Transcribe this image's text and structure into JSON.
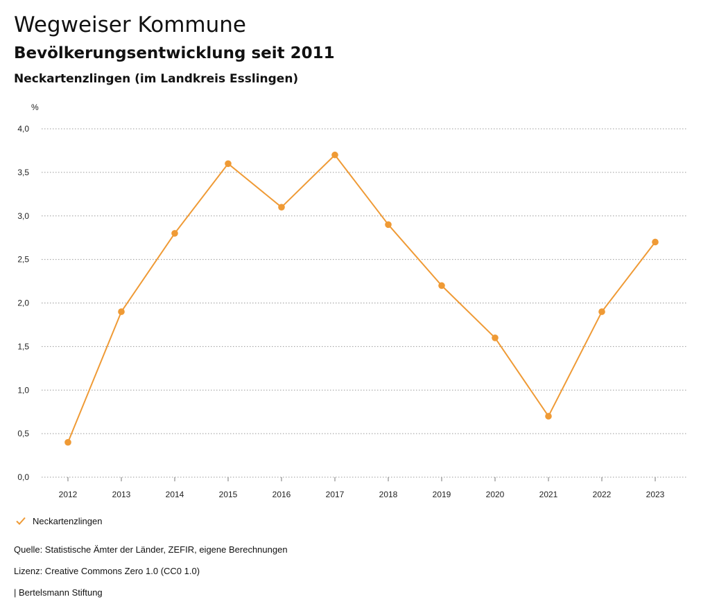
{
  "header": {
    "title": "Wegweiser Kommune",
    "subtitle": "Bevölkerungsentwicklung seit 2011",
    "region": "Neckartenzlingen (im Landkreis Esslingen)"
  },
  "colors": {
    "series": "#ef9a35",
    "grid": "#999999"
  },
  "chart_data": {
    "type": "line",
    "title": "Bevölkerungsentwicklung seit 2011",
    "ylabel": "%",
    "xlabel": "",
    "ylim": [
      0,
      4
    ],
    "yticks": [
      "0,0",
      "0,5",
      "1,0",
      "1,5",
      "2,0",
      "2,5",
      "3,0",
      "3,5",
      "4,0"
    ],
    "categories": [
      "2012",
      "2013",
      "2014",
      "2015",
      "2016",
      "2017",
      "2018",
      "2019",
      "2020",
      "2021",
      "2022",
      "2023"
    ],
    "series": [
      {
        "name": "Neckartenzlingen",
        "values": [
          0.4,
          1.9,
          2.8,
          3.6,
          3.1,
          3.7,
          2.9,
          2.2,
          1.6,
          0.7,
          1.9,
          2.7
        ]
      }
    ],
    "grid": true,
    "legend_position": "bottom-left"
  },
  "legend": {
    "label": "Neckartenzlingen",
    "icon": "check-icon"
  },
  "footer": {
    "source": "Quelle: Statistische Ämter der Länder, ZEFIR, eigene Berechnungen",
    "license": "Lizenz: Creative Commons Zero 1.0 (CC0 1.0)",
    "publisher": "| Bertelsmann Stiftung"
  }
}
